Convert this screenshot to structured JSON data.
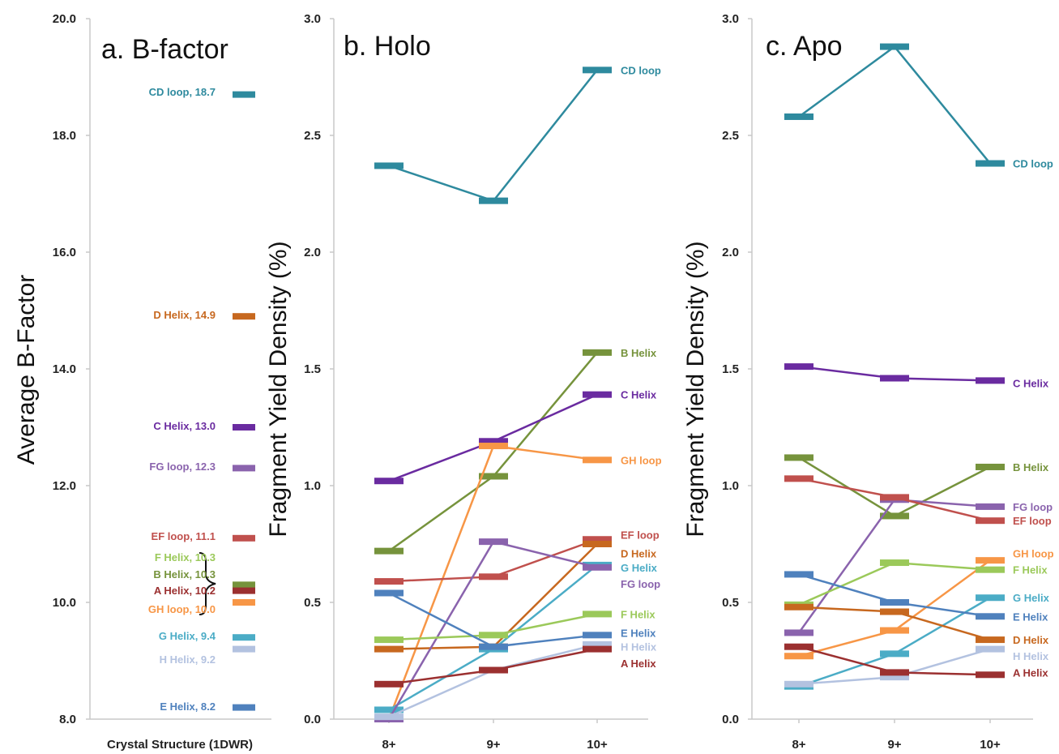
{
  "chart_data": [
    {
      "type": "bar",
      "title": "a. B-factor",
      "ylabel": "Average B-Factor",
      "xlabel": "",
      "ylim": [
        8.0,
        20.0
      ],
      "yticks": [
        "8.0",
        "10.0",
        "12.0",
        "14.0",
        "16.0",
        "18.0",
        "20.0"
      ],
      "categories": [
        "Crystal Structure (1DWR)"
      ],
      "bracket": true,
      "series": [
        {
          "name": "CD loop",
          "value": 18.7,
          "label": "CD loop, 18.7",
          "color": "#2e8a9e"
        },
        {
          "name": "D Helix",
          "value": 14.9,
          "label": "D Helix, 14.9",
          "color": "#c7681f"
        },
        {
          "name": "C Helix",
          "value": 13.0,
          "label": "C Helix, 13.0",
          "color": "#6a2ba0"
        },
        {
          "name": "FG loop",
          "value": 12.3,
          "label": "FG loop, 12.3",
          "color": "#8a63ad"
        },
        {
          "name": "EF loop",
          "value": 11.1,
          "label": "EF loop, 11.1",
          "color": "#c0504d"
        },
        {
          "name": "F Helix",
          "value": 10.3,
          "label": "F  Helix, 10.3",
          "color": "#9bc95a"
        },
        {
          "name": "B Helix",
          "value": 10.3,
          "label": "B Helix, 10.3",
          "color": "#76933c"
        },
        {
          "name": "A Helix",
          "value": 10.2,
          "label": "A Helix, 10.2",
          "color": "#9b3030"
        },
        {
          "name": "GH loop",
          "value": 10.0,
          "label": "GH loop, 10.0",
          "color": "#f79646"
        },
        {
          "name": "G Helix",
          "value": 9.4,
          "label": "G Helix, 9.4",
          "color": "#4bacc6"
        },
        {
          "name": "H Helix",
          "value": 9.2,
          "label": "H Helix, 9.2",
          "color": "#b3c2e0"
        },
        {
          "name": "E Helix",
          "value": 8.2,
          "label": "E Helix, 8.2",
          "color": "#4f81bd"
        }
      ]
    },
    {
      "type": "line",
      "title": "b. Holo",
      "ylabel": "Fragment Yield Density (%)",
      "xlabel": "",
      "categories": [
        "8+",
        "9+",
        "10+"
      ],
      "ylim": [
        0.0,
        3.0
      ],
      "yticks": [
        "0.0",
        "0.5",
        "1.0",
        "1.5",
        "2.0",
        "2.5",
        "3.0"
      ],
      "series": [
        {
          "name": "CD loop",
          "label": "CD loop",
          "values": [
            2.37,
            2.22,
            2.78
          ],
          "color": "#2e8a9e",
          "label_y": 2.78
        },
        {
          "name": "B Helix",
          "label": "B Helix",
          "values": [
            0.72,
            1.04,
            1.57
          ],
          "color": "#76933c",
          "label_y": 1.57
        },
        {
          "name": "C Helix",
          "label": "C Helix",
          "values": [
            1.02,
            1.19,
            1.39
          ],
          "color": "#6a2ba0",
          "label_y": 1.39
        },
        {
          "name": "GH loop",
          "label": "GH loop",
          "values": [
            0.0,
            1.17,
            1.11
          ],
          "color": "#f79646",
          "label_y": 1.11
        },
        {
          "name": "EF loop",
          "label": "EF loop",
          "values": [
            0.59,
            0.61,
            0.77
          ],
          "color": "#c0504d",
          "label_y": 0.79
        },
        {
          "name": "D Helix",
          "label": "D Helix",
          "values": [
            0.3,
            0.31,
            0.75
          ],
          "color": "#c7681f",
          "label_y": 0.71
        },
        {
          "name": "G Helix",
          "label": "G Helix",
          "values": [
            0.04,
            0.3,
            0.66
          ],
          "color": "#4bacc6",
          "label_y": 0.65
        },
        {
          "name": "FG loop",
          "label": "FG loop",
          "values": [
            0.0,
            0.76,
            0.65
          ],
          "color": "#8a63ad",
          "label_y": 0.58
        },
        {
          "name": "F Helix",
          "label": "F  Helix",
          "values": [
            0.34,
            0.36,
            0.45
          ],
          "color": "#9bc95a",
          "label_y": 0.45
        },
        {
          "name": "E Helix",
          "label": "E Helix",
          "values": [
            0.54,
            0.31,
            0.36
          ],
          "color": "#4f81bd",
          "label_y": 0.37
        },
        {
          "name": "H Helix",
          "label": "H Helix",
          "values": [
            0.01,
            0.21,
            0.32
          ],
          "color": "#b3c2e0",
          "label_y": 0.31
        },
        {
          "name": "A Helix",
          "label": "A Helix",
          "values": [
            0.15,
            0.21,
            0.3
          ],
          "color": "#9b3030",
          "label_y": 0.24
        }
      ]
    },
    {
      "type": "line",
      "title": "c. Apo",
      "ylabel": "Fragment Yield Density (%)",
      "xlabel": "",
      "categories": [
        "8+",
        "9+",
        "10+"
      ],
      "ylim": [
        0.0,
        3.0
      ],
      "yticks": [
        "0.0",
        "0.5",
        "1.0",
        "1.5",
        "2.0",
        "2.5",
        "3.0"
      ],
      "series": [
        {
          "name": "CD loop",
          "label": "CD loop",
          "values": [
            2.58,
            2.88,
            2.38
          ],
          "color": "#2e8a9e",
          "label_y": 2.38
        },
        {
          "name": "C Helix",
          "label": "C Helix",
          "values": [
            1.51,
            1.46,
            1.45
          ],
          "color": "#6a2ba0",
          "label_y": 1.44
        },
        {
          "name": "B Helix",
          "label": "B Helix",
          "values": [
            1.12,
            0.87,
            1.08
          ],
          "color": "#76933c",
          "label_y": 1.08
        },
        {
          "name": "FG loop",
          "label": "FG loop",
          "values": [
            0.37,
            0.94,
            0.91
          ],
          "color": "#8a63ad",
          "label_y": 0.91
        },
        {
          "name": "EF loop",
          "label": "EF loop",
          "values": [
            1.03,
            0.95,
            0.85
          ],
          "color": "#c0504d",
          "label_y": 0.85
        },
        {
          "name": "GH loop",
          "label": "GH loop",
          "values": [
            0.27,
            0.38,
            0.68
          ],
          "color": "#f79646",
          "label_y": 0.71
        },
        {
          "name": "F Helix",
          "label": "F  Helix",
          "values": [
            0.49,
            0.67,
            0.64
          ],
          "color": "#9bc95a",
          "label_y": 0.64
        },
        {
          "name": "G Helix",
          "label": "G Helix",
          "values": [
            0.14,
            0.28,
            0.52
          ],
          "color": "#4bacc6",
          "label_y": 0.52
        },
        {
          "name": "E Helix",
          "label": "E Helix",
          "values": [
            0.62,
            0.5,
            0.44
          ],
          "color": "#4f81bd",
          "label_y": 0.44
        },
        {
          "name": "D Helix",
          "label": "D Helix",
          "values": [
            0.48,
            0.46,
            0.34
          ],
          "color": "#c7681f",
          "label_y": 0.34
        },
        {
          "name": "H Helix",
          "label": "H Helix",
          "values": [
            0.15,
            0.18,
            0.3
          ],
          "color": "#b3c2e0",
          "label_y": 0.27
        },
        {
          "name": "A Helix",
          "label": "A Helix",
          "values": [
            0.31,
            0.2,
            0.19
          ],
          "color": "#9b3030",
          "label_y": 0.2
        }
      ]
    }
  ]
}
